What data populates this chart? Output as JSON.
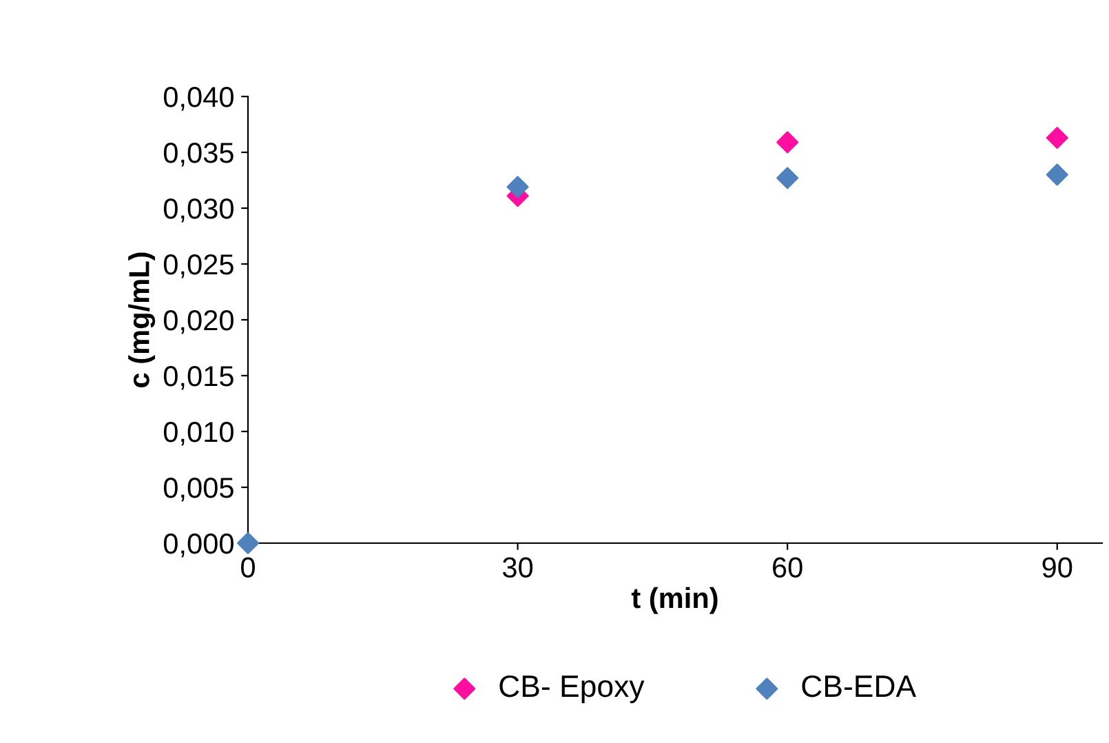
{
  "chart_data": {
    "type": "scatter",
    "xlabel": "t (min)",
    "ylabel": "c (mg/mL)",
    "x": [
      0,
      30,
      60,
      90
    ],
    "series": [
      {
        "name": "CB- Epoxy",
        "color": "#ff0fa0",
        "values": [
          null,
          0.0311,
          0.0359,
          0.0363
        ]
      },
      {
        "name": "CB-EDA",
        "color": "#4f81bd",
        "values": [
          0.0,
          0.0319,
          0.0327,
          0.033
        ]
      }
    ],
    "xlim": [
      0,
      95
    ],
    "xticks": [
      0,
      30,
      60,
      90
    ],
    "ylim": [
      0,
      0.04
    ],
    "yticks": [
      {
        "value": 0,
        "label": "0,000"
      },
      {
        "value": 0.005,
        "label": "0,005"
      },
      {
        "value": 0.01,
        "label": "0,010"
      },
      {
        "value": 0.015,
        "label": "0,015"
      },
      {
        "value": 0.02,
        "label": "0,020"
      },
      {
        "value": 0.025,
        "label": "0,025"
      },
      {
        "value": 0.03,
        "label": "0,030"
      },
      {
        "value": 0.035,
        "label": "0,035"
      },
      {
        "value": 0.04,
        "label": "0,040"
      }
    ],
    "marker": "diamond",
    "grid": false,
    "legend": "bottom"
  }
}
